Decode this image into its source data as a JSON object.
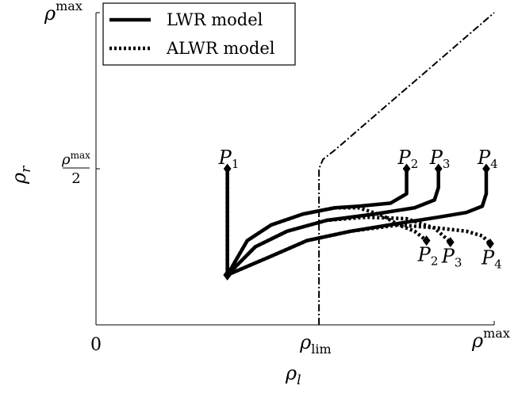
{
  "chart_data": {
    "type": "line",
    "title": "",
    "xlabel": "ρ_l",
    "ylabel": "ρ_r",
    "xlim": [
      0,
      1
    ],
    "ylim": [
      0,
      1
    ],
    "x_ticks": [
      {
        "value": 0,
        "base": "0",
        "sup": "",
        "sub": ""
      },
      {
        "value": 0.56,
        "base": "ρ",
        "sup": "",
        "sub": "lim"
      },
      {
        "value": 1,
        "base": "ρ",
        "sup": "max",
        "sub": ""
      }
    ],
    "y_ticks": [
      {
        "value": 0.5,
        "num": "ρmax",
        "den": "2"
      },
      {
        "value": 1,
        "label_base": "ρ",
        "label_sup": "max"
      }
    ],
    "legend": {
      "position": "top-left",
      "entries": [
        {
          "label": "LWR model",
          "style": "solid"
        },
        {
          "label": "ALWR model",
          "style": "dotted"
        }
      ]
    },
    "boundary_curve": {
      "style": "dash-dot",
      "points": [
        [
          0.56,
          0
        ],
        [
          0.56,
          0.5
        ],
        [
          0.57,
          0.53
        ],
        [
          0.6,
          0.56
        ],
        [
          1.0,
          1.0
        ]
      ]
    },
    "series": [
      {
        "name": "LWR model",
        "style": "solid",
        "path": [
          [
            0.33,
            0.16
          ],
          [
            0.33,
            0.5
          ]
        ]
      },
      {
        "name": "LWR model",
        "style": "solid",
        "path": [
          [
            0.33,
            0.16
          ],
          [
            0.38,
            0.27
          ],
          [
            0.44,
            0.32
          ],
          [
            0.52,
            0.355
          ],
          [
            0.6,
            0.375
          ],
          [
            0.66,
            0.38
          ],
          [
            0.74,
            0.39
          ],
          [
            0.78,
            0.42
          ],
          [
            0.78,
            0.5
          ]
        ]
      },
      {
        "name": "LWR model",
        "style": "solid",
        "path": [
          [
            0.33,
            0.16
          ],
          [
            0.4,
            0.25
          ],
          [
            0.48,
            0.3
          ],
          [
            0.58,
            0.335
          ],
          [
            0.7,
            0.355
          ],
          [
            0.8,
            0.375
          ],
          [
            0.85,
            0.4
          ],
          [
            0.86,
            0.44
          ],
          [
            0.86,
            0.5
          ]
        ]
      },
      {
        "name": "LWR model",
        "style": "solid",
        "path": [
          [
            0.33,
            0.16
          ],
          [
            0.44,
            0.22
          ],
          [
            0.53,
            0.27
          ],
          [
            0.64,
            0.3
          ],
          [
            0.76,
            0.325
          ],
          [
            0.86,
            0.345
          ],
          [
            0.93,
            0.36
          ],
          [
            0.97,
            0.38
          ],
          [
            0.98,
            0.42
          ],
          [
            0.98,
            0.5
          ]
        ]
      },
      {
        "name": "ALWR model",
        "style": "dotted",
        "path": [
          [
            0.33,
            0.16
          ],
          [
            0.33,
            0.5
          ]
        ]
      },
      {
        "name": "ALWR model",
        "style": "dotted",
        "path": [
          [
            0.33,
            0.16
          ],
          [
            0.38,
            0.27
          ],
          [
            0.44,
            0.32
          ],
          [
            0.52,
            0.355
          ],
          [
            0.6,
            0.375
          ],
          [
            0.66,
            0.375
          ],
          [
            0.72,
            0.35
          ],
          [
            0.76,
            0.32
          ],
          [
            0.8,
            0.3
          ],
          [
            0.83,
            0.27
          ]
        ]
      },
      {
        "name": "ALWR model",
        "style": "dotted",
        "path": [
          [
            0.33,
            0.16
          ],
          [
            0.4,
            0.25
          ],
          [
            0.48,
            0.3
          ],
          [
            0.58,
            0.335
          ],
          [
            0.68,
            0.345
          ],
          [
            0.78,
            0.34
          ],
          [
            0.85,
            0.31
          ],
          [
            0.89,
            0.265
          ]
        ]
      },
      {
        "name": "ALWR model",
        "style": "dotted",
        "path": [
          [
            0.33,
            0.16
          ],
          [
            0.44,
            0.22
          ],
          [
            0.53,
            0.27
          ],
          [
            0.64,
            0.3
          ],
          [
            0.76,
            0.32
          ],
          [
            0.86,
            0.31
          ],
          [
            0.93,
            0.3
          ],
          [
            0.97,
            0.285
          ],
          [
            0.99,
            0.26
          ]
        ]
      }
    ],
    "points": [
      {
        "label": "P",
        "sub": "1",
        "x": 0.33,
        "y": 0.5,
        "label_pos": "above"
      },
      {
        "label": "P",
        "sub": "2",
        "x": 0.78,
        "y": 0.5,
        "label_pos": "above"
      },
      {
        "label": "P",
        "sub": "3",
        "x": 0.86,
        "y": 0.5,
        "label_pos": "above"
      },
      {
        "label": "P",
        "sub": "4",
        "x": 0.98,
        "y": 0.5,
        "label_pos": "above"
      },
      {
        "label": "P",
        "sub": "2",
        "x": 0.83,
        "y": 0.27,
        "label_pos": "below"
      },
      {
        "label": "P",
        "sub": "3",
        "x": 0.89,
        "y": 0.265,
        "label_pos": "below"
      },
      {
        "label": "P",
        "sub": "4",
        "x": 0.99,
        "y": 0.26,
        "label_pos": "below"
      }
    ],
    "origin_point": {
      "x": 0.33,
      "y": 0.16
    }
  }
}
